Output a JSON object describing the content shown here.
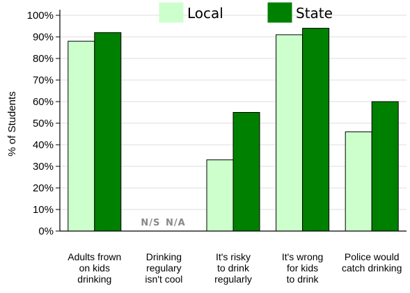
{
  "chart_data": {
    "type": "bar",
    "ylabel": "% of Students",
    "ylim": [
      0,
      100
    ],
    "yticks": [
      "0%",
      "10%",
      "20%",
      "30%",
      "40%",
      "50%",
      "60%",
      "70%",
      "80%",
      "90%",
      "100%"
    ],
    "grid": true,
    "legend_position": "top",
    "categories": [
      [
        "Adults frown",
        "on kids",
        "drinking"
      ],
      [
        "Drinking",
        "regulary",
        "isn't cool"
      ],
      [
        "It's risky",
        "to drink",
        "regularly"
      ],
      [
        "It's wrong",
        "for kids",
        "to drink"
      ],
      [
        "Police would",
        "catch drinking"
      ]
    ],
    "series": [
      {
        "name": "Local",
        "color": "#ccffcc",
        "values": [
          88,
          null,
          33,
          91,
          46
        ]
      },
      {
        "name": "State",
        "color": "#008000",
        "values": [
          92,
          null,
          55,
          94,
          60
        ]
      }
    ],
    "missing_labels": [
      "N/S",
      "N/A"
    ]
  }
}
